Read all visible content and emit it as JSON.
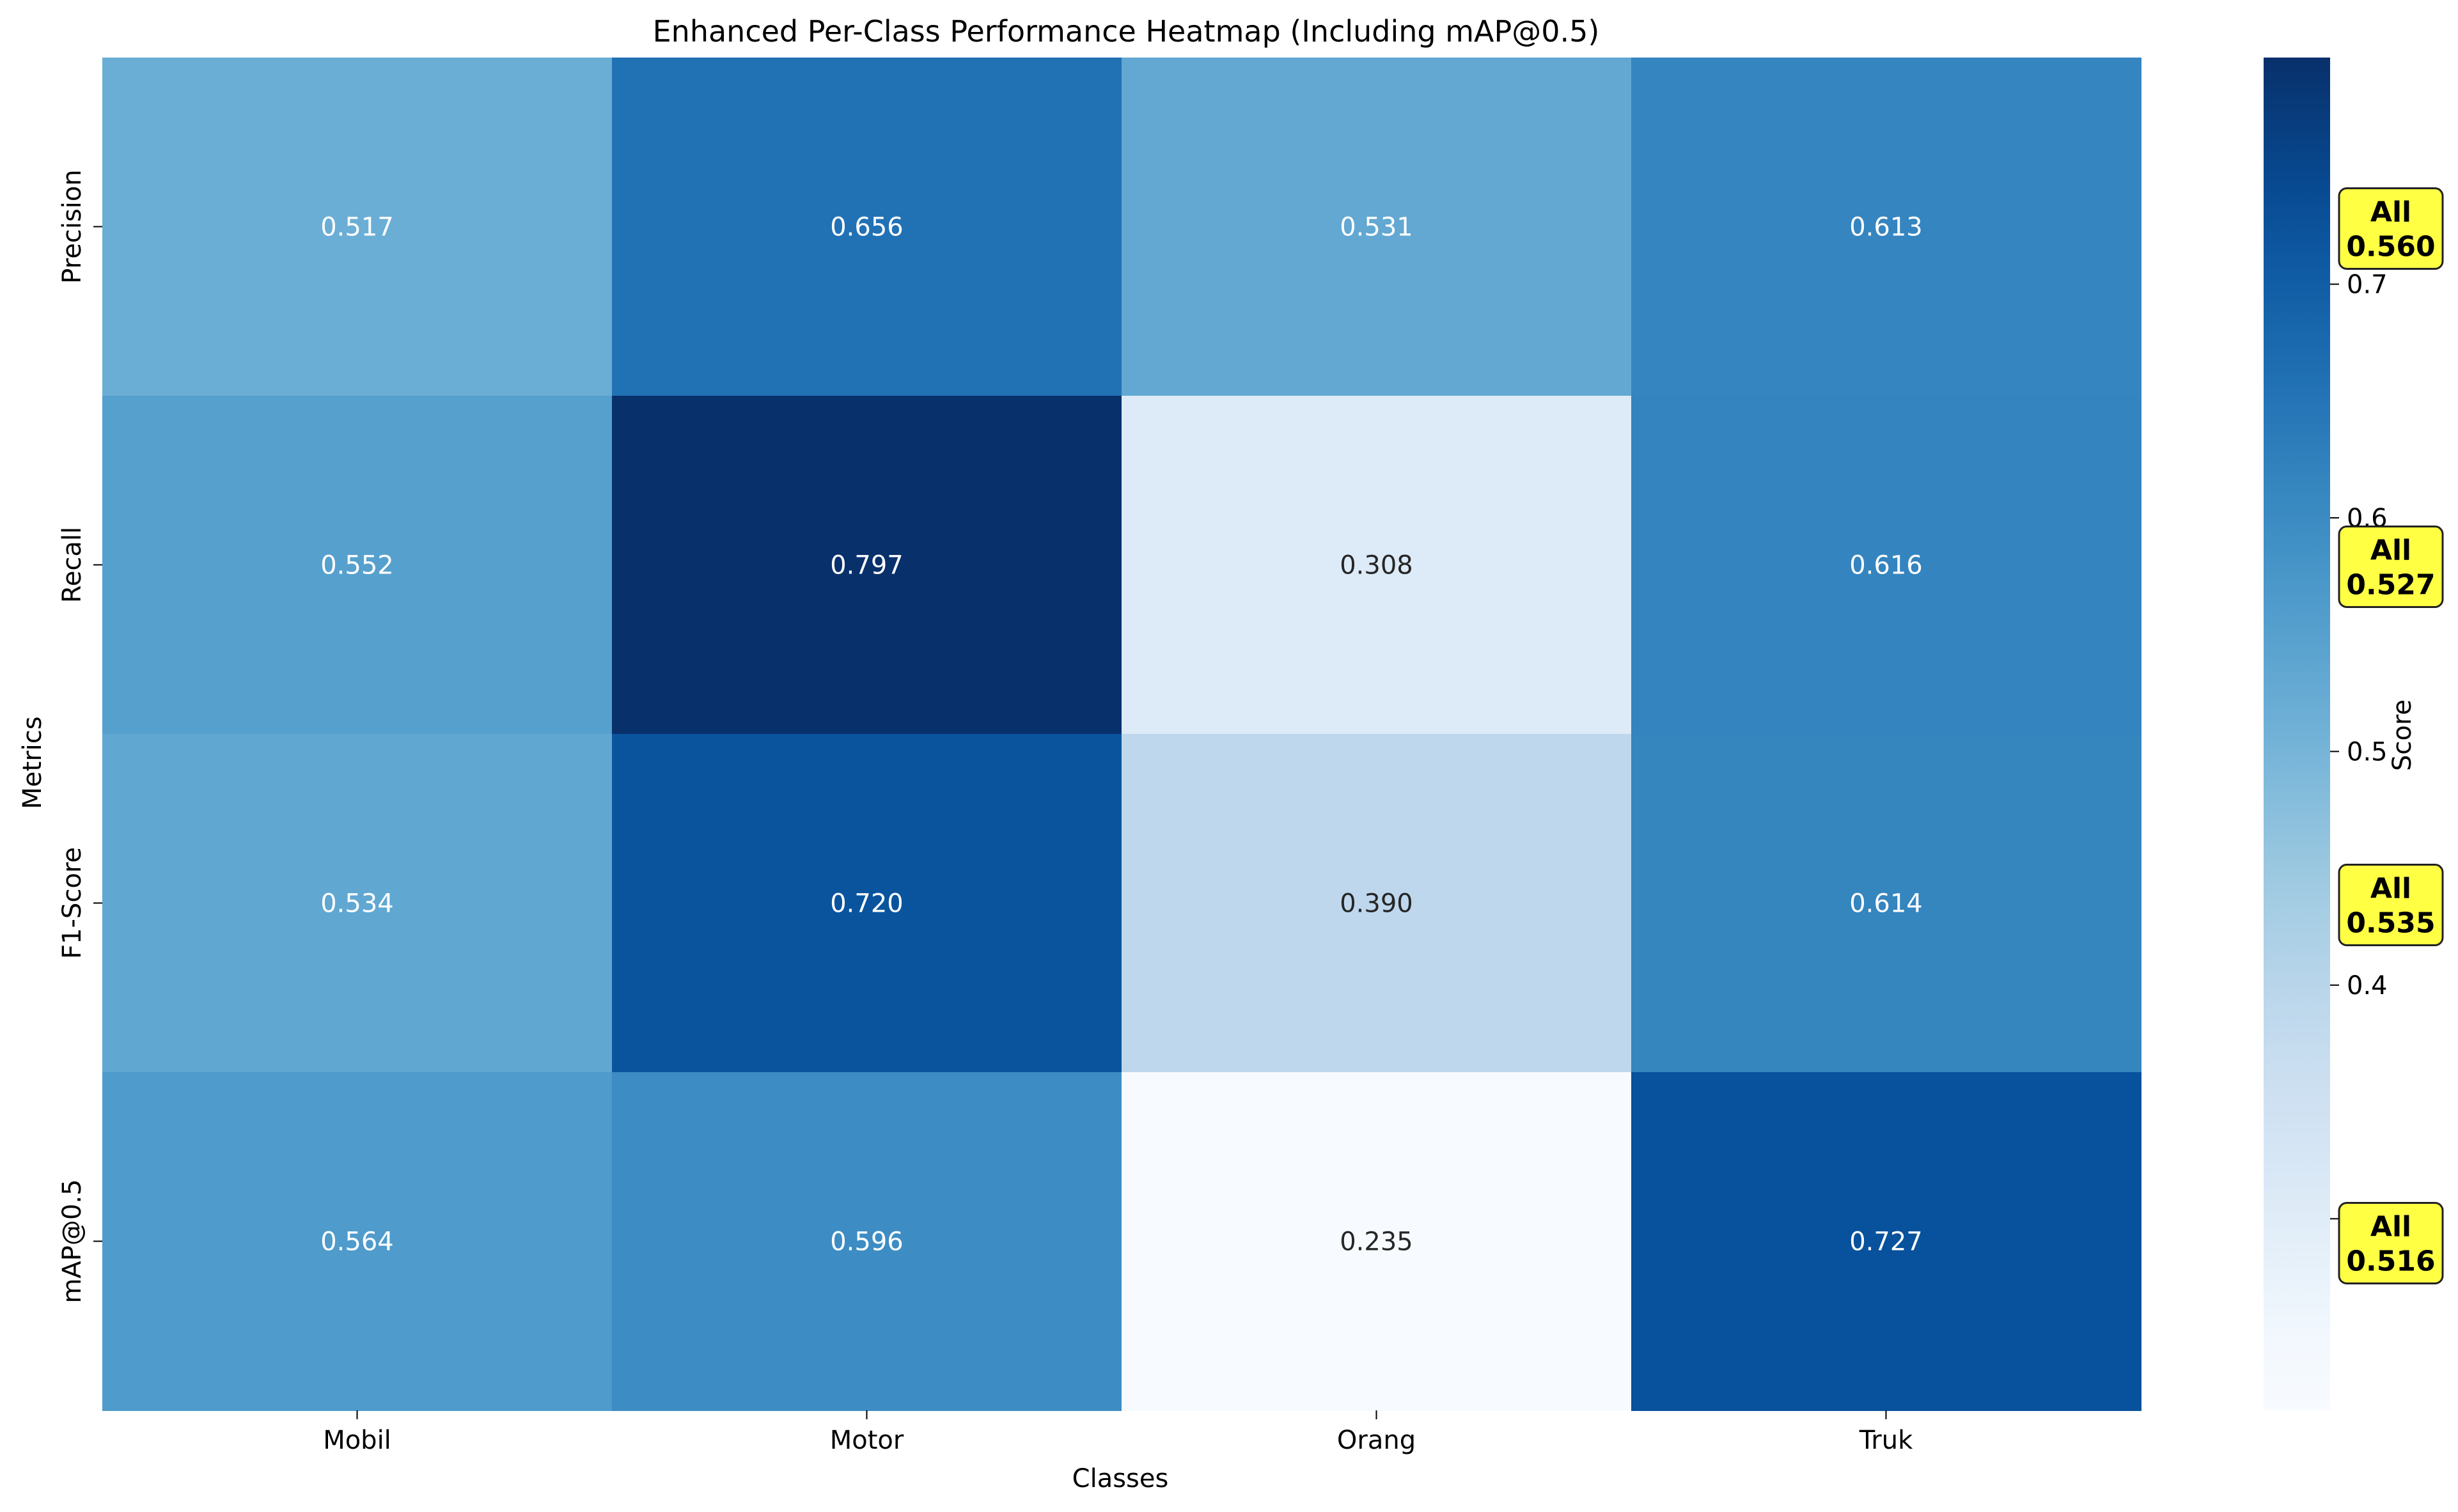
{
  "chart_data": {
    "type": "heatmap",
    "title": "Enhanced Per-Class Performance Heatmap (Including mAP@0.5)",
    "xlabel": "Classes",
    "ylabel": "Metrics",
    "x_categories": [
      "Mobil",
      "Motor",
      "Orang",
      "Truk"
    ],
    "y_categories": [
      "Precision",
      "Recall",
      "F1-Score",
      "mAP@0.5"
    ],
    "values": [
      [
        0.517,
        0.656,
        0.531,
        0.613
      ],
      [
        0.552,
        0.797,
        0.308,
        0.616
      ],
      [
        0.534,
        0.72,
        0.39,
        0.614
      ],
      [
        0.564,
        0.596,
        0.235,
        0.727
      ]
    ],
    "value_format": "0.000",
    "colormap": "Blues",
    "color_range": [
      0.235,
      0.797
    ],
    "colorbar": {
      "label": "Score",
      "ticks": [
        0.3,
        0.4,
        0.5,
        0.6,
        0.7
      ],
      "tick_labels": [
        "0.3",
        "0.4",
        "0.5",
        "0.6",
        "0.7"
      ]
    },
    "annotations": [
      {
        "row": "Precision",
        "label": "All",
        "value": "0.560"
      },
      {
        "row": "Recall",
        "label": "All",
        "value": "0.527"
      },
      {
        "row": "F1-Score",
        "label": "All",
        "value": "0.535"
      },
      {
        "row": "mAP@0.5",
        "label": "All",
        "value": "0.516"
      }
    ],
    "annotation_color": "#ffff44"
  }
}
